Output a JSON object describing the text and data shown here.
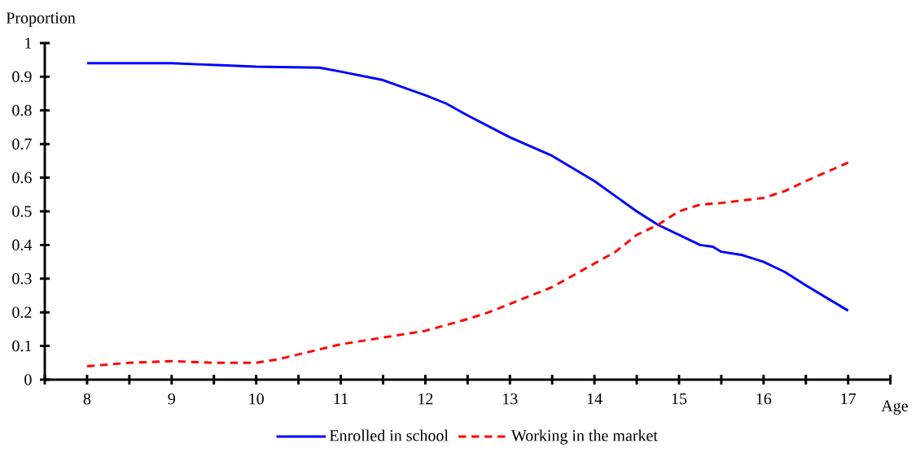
{
  "chart_data": {
    "type": "line",
    "xlabel": "Age",
    "ylabel": "Proportion",
    "xlim": [
      7.5,
      17.5
    ],
    "ylim": [
      0,
      1
    ],
    "xticks": [
      {
        "value": 7.5,
        "label": null
      },
      {
        "value": 8,
        "label": "8"
      },
      {
        "value": 8.5,
        "label": null
      },
      {
        "value": 9,
        "label": "9"
      },
      {
        "value": 9.5,
        "label": null
      },
      {
        "value": 10,
        "label": "10"
      },
      {
        "value": 10.5,
        "label": null
      },
      {
        "value": 11,
        "label": "11"
      },
      {
        "value": 11.5,
        "label": null
      },
      {
        "value": 12,
        "label": "12"
      },
      {
        "value": 12.5,
        "label": null
      },
      {
        "value": 13,
        "label": "13"
      },
      {
        "value": 13.5,
        "label": null
      },
      {
        "value": 14,
        "label": "14"
      },
      {
        "value": 14.5,
        "label": null
      },
      {
        "value": 15,
        "label": "15"
      },
      {
        "value": 15.5,
        "label": null
      },
      {
        "value": 16,
        "label": "16"
      },
      {
        "value": 16.5,
        "label": null
      },
      {
        "value": 17,
        "label": "17"
      },
      {
        "value": 17.5,
        "label": null
      }
    ],
    "yticks": [
      0,
      0.1,
      0.2,
      0.3,
      0.4,
      0.5,
      0.6,
      0.7,
      0.8,
      0.9,
      1
    ],
    "legend": "bottom",
    "grid": false,
    "series": [
      {
        "name": "Enrolled in school",
        "color": "#0000ff",
        "line_style": "solid",
        "x": [
          8,
          9,
          10,
          10.75,
          11,
          11.5,
          12,
          12.25,
          12.5,
          13,
          13.5,
          14,
          14.25,
          14.5,
          14.75,
          15,
          15.25,
          15.4,
          15.5,
          15.75,
          16,
          16.25,
          16.5,
          17
        ],
        "values": [
          0.94,
          0.94,
          0.93,
          0.927,
          0.915,
          0.89,
          0.845,
          0.82,
          0.785,
          0.72,
          0.665,
          0.59,
          0.545,
          0.5,
          0.46,
          0.43,
          0.4,
          0.395,
          0.38,
          0.37,
          0.35,
          0.32,
          0.28,
          0.205
        ]
      },
      {
        "name": "Working in the market",
        "color": "#ff0000",
        "line_style": "dashed",
        "x": [
          8,
          8.5,
          9,
          9.5,
          10,
          10.25,
          10.5,
          10.75,
          11,
          11.25,
          11.5,
          12,
          12.5,
          12.75,
          13,
          13.5,
          14,
          14.25,
          14.5,
          14.75,
          15,
          15.25,
          15.5,
          16,
          16.25,
          16.5,
          17
        ],
        "values": [
          0.04,
          0.05,
          0.055,
          0.05,
          0.05,
          0.06,
          0.075,
          0.09,
          0.105,
          0.115,
          0.125,
          0.145,
          0.18,
          0.2,
          0.225,
          0.275,
          0.345,
          0.38,
          0.43,
          0.46,
          0.5,
          0.52,
          0.525,
          0.54,
          0.56,
          0.59,
          0.645
        ]
      }
    ]
  }
}
